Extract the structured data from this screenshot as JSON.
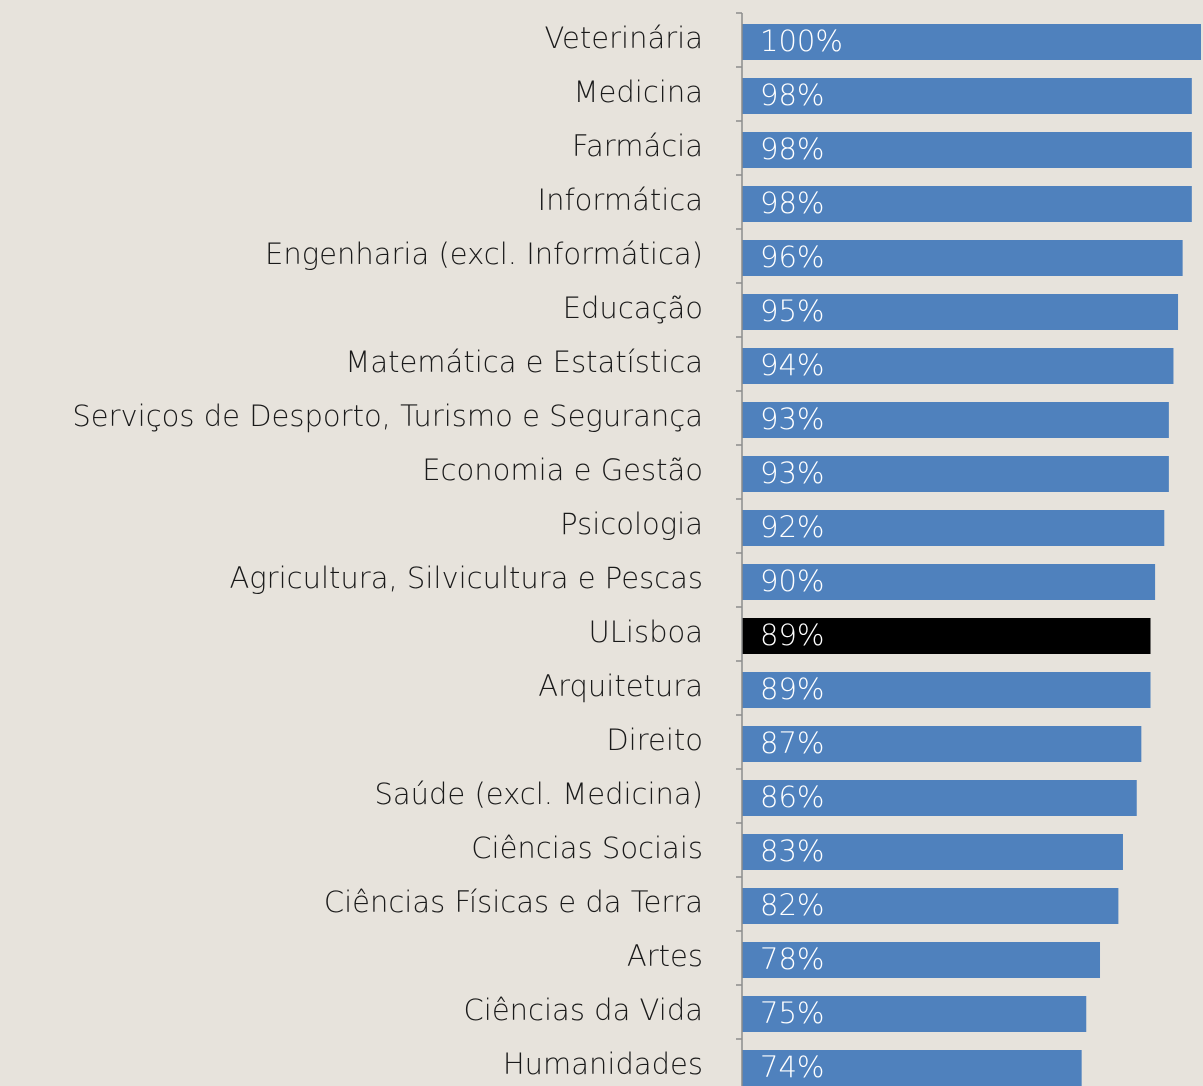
{
  "chart_data": {
    "type": "hbar",
    "categories": [
      "Veterinária",
      "Medicina",
      "Farmácia",
      "Informática",
      "Engenharia (excl. Informática)",
      "Educação",
      "Matemática e Estatística",
      "Serviços de Desporto, Turismo e Segurança",
      "Economia e Gestão",
      "Psicologia",
      "Agricultura, Silvicultura e Pescas",
      "ULisboa",
      "Arquitetura",
      "Direito",
      "Saúde (excl. Medicina)",
      "Ciências Sociais",
      "Ciências Físicas e da Terra",
      "Artes",
      "Ciências da Vida",
      "Humanidades"
    ],
    "values": [
      100,
      98,
      98,
      98,
      96,
      95,
      94,
      93,
      93,
      92,
      90,
      89,
      89,
      87,
      86,
      83,
      82,
      78,
      75,
      74
    ],
    "value_labels": [
      "100%",
      "98%",
      "98%",
      "98%",
      "96%",
      "95%",
      "94%",
      "93%",
      "93%",
      "92%",
      "90%",
      "89%",
      "89%",
      "87%",
      "86%",
      "83%",
      "82%",
      "78%",
      "75%",
      "74%"
    ],
    "colors": [
      "#4f81bd",
      "#4f81bd",
      "#4f81bd",
      "#4f81bd",
      "#4f81bd",
      "#4f81bd",
      "#4f81bd",
      "#4f81bd",
      "#4f81bd",
      "#4f81bd",
      "#4f81bd",
      "#000000",
      "#4f81bd",
      "#4f81bd",
      "#4f81bd",
      "#4f81bd",
      "#4f81bd",
      "#4f81bd",
      "#4f81bd",
      "#4f81bd"
    ]
  }
}
